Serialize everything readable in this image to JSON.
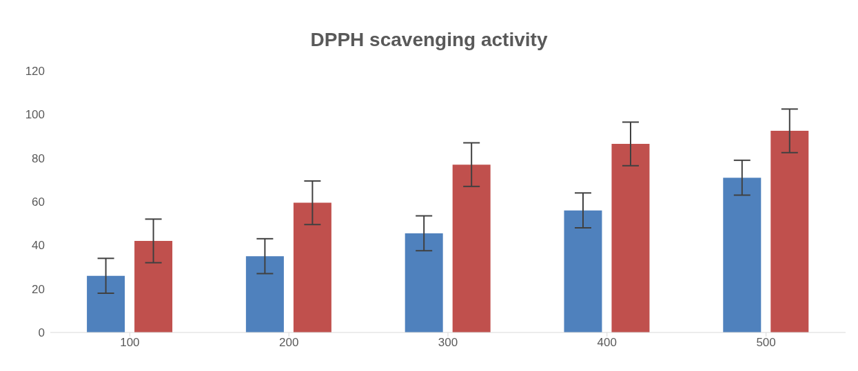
{
  "chart_data": {
    "type": "bar",
    "title": "DPPH scavenging activity",
    "categories": [
      "100",
      "200",
      "300",
      "400",
      "500"
    ],
    "series": [
      {
        "color": "#4f81bd",
        "values": [
          26,
          35,
          45.5,
          56,
          71
        ],
        "errors": [
          8,
          8,
          8,
          8,
          8
        ]
      },
      {
        "color": "#c0504d",
        "values": [
          42,
          59.5,
          77,
          86.5,
          92.5
        ],
        "errors": [
          10,
          10,
          10,
          10,
          10
        ]
      }
    ],
    "ylim": [
      0,
      120
    ],
    "yticks": [
      0,
      20,
      40,
      60,
      80,
      100,
      120
    ],
    "grid": false,
    "legend": false
  }
}
